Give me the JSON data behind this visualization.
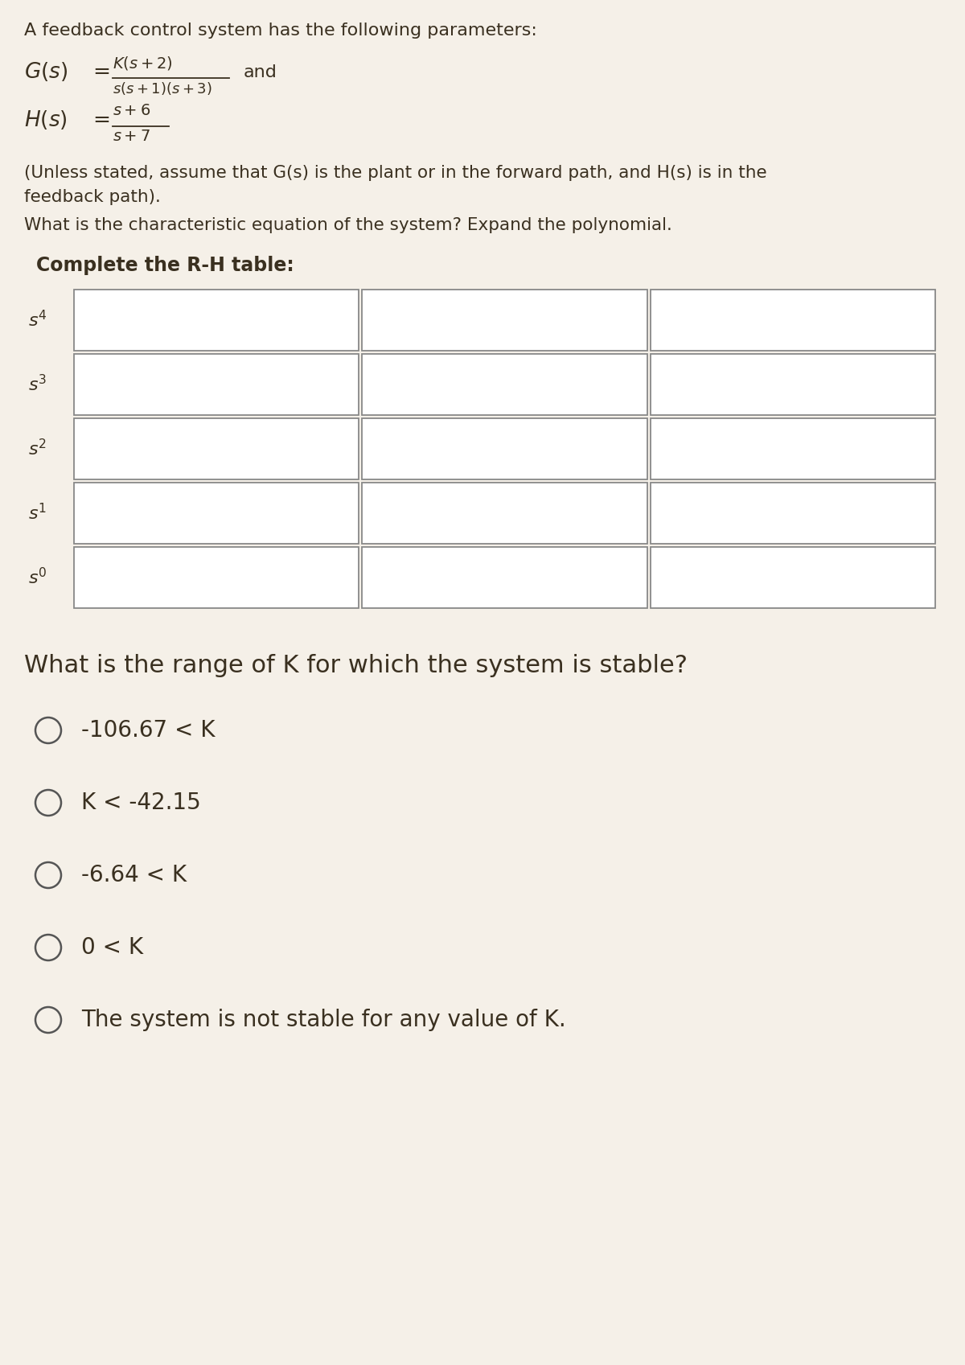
{
  "background_color": "#f5f0e8",
  "page_width": 12.0,
  "page_height": 16.97,
  "intro_text": "A feedback control system has the following parameters:",
  "note_text": "(Unless stated, assume that G(s) is the plant or in the forward path, and H(s) is in the\nfeedback path).",
  "char_eq_text": "What is the characteristic equation of the system? Expand the polynomial.",
  "table_title": "Complete the R-H table:",
  "question_text": "What is the range of K for which the system is stable?",
  "options": [
    "-106.67 < K",
    "K < -42.15",
    "-6.64 < K",
    "0 < K",
    "The system is not stable for any value of K."
  ],
  "cell_fill": "#ffffff",
  "cell_edge": "#888888",
  "text_color": "#3a3020",
  "option_text_color": "#3a3020"
}
